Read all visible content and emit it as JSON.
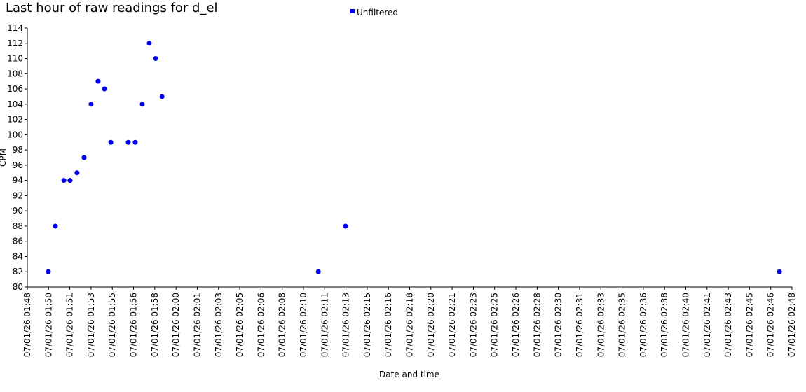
{
  "chart_data": {
    "type": "scatter",
    "title": "Last hour of raw readings for d_el",
    "x_label": "Date and time",
    "y_label": "CPM",
    "legend_position": "top",
    "grid": false,
    "xlim": [
      "07/01/26 01:48:00",
      "07/01/26 02:48:00"
    ],
    "ylim": [
      80,
      114
    ],
    "yticks": [
      80,
      82,
      84,
      86,
      88,
      90,
      92,
      94,
      96,
      98,
      100,
      102,
      104,
      106,
      108,
      110,
      112,
      114
    ],
    "xticks": [
      {
        "value": "07/01/26 01:48:00",
        "label": "07/01/26 01:48"
      },
      {
        "value": "07/01/26 01:49:40",
        "label": "07/01/26 01:50"
      },
      {
        "value": "07/01/26 01:51:20",
        "label": "07/01/26 01:51"
      },
      {
        "value": "07/01/26 01:53:00",
        "label": "07/01/26 01:53"
      },
      {
        "value": "07/01/26 01:54:40",
        "label": "07/01/26 01:55"
      },
      {
        "value": "07/01/26 01:56:20",
        "label": "07/01/26 01:56"
      },
      {
        "value": "07/01/26 01:58:00",
        "label": "07/01/26 01:58"
      },
      {
        "value": "07/01/26 01:59:40",
        "label": "07/01/26 02:00"
      },
      {
        "value": "07/01/26 02:01:20",
        "label": "07/01/26 02:01"
      },
      {
        "value": "07/01/26 02:03:00",
        "label": "07/01/26 02:03"
      },
      {
        "value": "07/01/26 02:04:40",
        "label": "07/01/26 02:05"
      },
      {
        "value": "07/01/26 02:06:20",
        "label": "07/01/26 02:06"
      },
      {
        "value": "07/01/26 02:08:00",
        "label": "07/01/26 02:08"
      },
      {
        "value": "07/01/26 02:09:40",
        "label": "07/01/26 02:10"
      },
      {
        "value": "07/01/26 02:11:20",
        "label": "07/01/26 02:11"
      },
      {
        "value": "07/01/26 02:13:00",
        "label": "07/01/26 02:13"
      },
      {
        "value": "07/01/26 02:14:40",
        "label": "07/01/26 02:15"
      },
      {
        "value": "07/01/26 02:16:20",
        "label": "07/01/26 02:16"
      },
      {
        "value": "07/01/26 02:18:00",
        "label": "07/01/26 02:18"
      },
      {
        "value": "07/01/26 02:19:40",
        "label": "07/01/26 02:20"
      },
      {
        "value": "07/01/26 02:21:20",
        "label": "07/01/26 02:21"
      },
      {
        "value": "07/01/26 02:23:00",
        "label": "07/01/26 02:23"
      },
      {
        "value": "07/01/26 02:24:40",
        "label": "07/01/26 02:25"
      },
      {
        "value": "07/01/26 02:26:20",
        "label": "07/01/26 02:26"
      },
      {
        "value": "07/01/26 02:28:00",
        "label": "07/01/26 02:28"
      },
      {
        "value": "07/01/26 02:29:40",
        "label": "07/01/26 02:30"
      },
      {
        "value": "07/01/26 02:31:20",
        "label": "07/01/26 02:31"
      },
      {
        "value": "07/01/26 02:33:00",
        "label": "07/01/26 02:33"
      },
      {
        "value": "07/01/26 02:34:40",
        "label": "07/01/26 02:35"
      },
      {
        "value": "07/01/26 02:36:20",
        "label": "07/01/26 02:36"
      },
      {
        "value": "07/01/26 02:38:00",
        "label": "07/01/26 02:38"
      },
      {
        "value": "07/01/26 02:39:40",
        "label": "07/01/26 02:40"
      },
      {
        "value": "07/01/26 02:41:20",
        "label": "07/01/26 02:41"
      },
      {
        "value": "07/01/26 02:43:00",
        "label": "07/01/26 02:43"
      },
      {
        "value": "07/01/26 02:44:40",
        "label": "07/01/26 02:45"
      },
      {
        "value": "07/01/26 02:46:20",
        "label": "07/01/26 02:46"
      },
      {
        "value": "07/01/26 02:48:00",
        "label": "07/01/26 02:48"
      }
    ],
    "series": [
      {
        "name": "Unfiltered",
        "color": "#0000ee",
        "x": [
          "07/01/26 01:49:39",
          "07/01/26 01:50:12",
          "07/01/26 01:50:52",
          "07/01/26 01:51:21",
          "07/01/26 01:51:54",
          "07/01/26 01:52:27",
          "07/01/26 01:53:00",
          "07/01/26 01:53:33",
          "07/01/26 01:54:03",
          "07/01/26 01:54:33",
          "07/01/26 01:55:55",
          "07/01/26 01:56:28",
          "07/01/26 01:57:01",
          "07/01/26 01:57:34",
          "07/01/26 01:58:04",
          "07/01/26 01:58:34",
          "07/01/26 02:10:50",
          "07/01/26 02:12:58",
          "07/01/26 02:47:01"
        ],
        "values": [
          82,
          88,
          94,
          94,
          95,
          97,
          104,
          107,
          106,
          99,
          99,
          99,
          104,
          112,
          110,
          105,
          82,
          88,
          82
        ]
      }
    ]
  }
}
